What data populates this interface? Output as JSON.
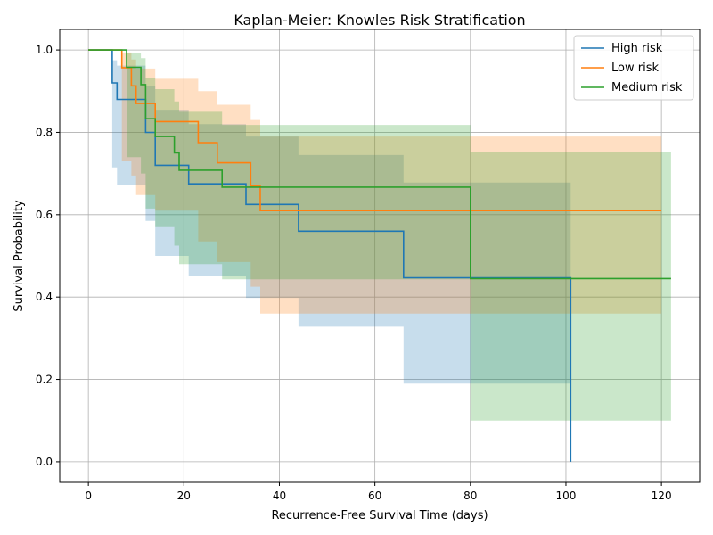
{
  "chart_data": {
    "type": "line",
    "title": "Kaplan-Meier: Knowles Risk Stratification",
    "xlabel": "Recurrence-Free Survival Time (days)",
    "ylabel": "Survival Probability",
    "xlim": [
      -6,
      128
    ],
    "ylim": [
      -0.05,
      1.05
    ],
    "xticks": [
      0,
      20,
      40,
      60,
      80,
      100,
      120
    ],
    "yticks": [
      0.0,
      0.2,
      0.4,
      0.6,
      0.8,
      1.0
    ],
    "xtick_labels": [
      "0",
      "20",
      "40",
      "60",
      "80",
      "100",
      "120"
    ],
    "ytick_labels": [
      "0.0",
      "0.2",
      "0.4",
      "0.6",
      "0.8",
      "1.0"
    ],
    "grid": true,
    "legend_position": "top-right",
    "series": [
      {
        "name": "High risk",
        "color": "#1f77b4",
        "x": [
          0,
          5,
          6,
          12,
          14,
          21,
          33,
          44,
          66,
          101,
          101
        ],
        "y": [
          1.0,
          0.92,
          0.88,
          0.8,
          0.72,
          0.675,
          0.625,
          0.56,
          0.447,
          0.447,
          0.0
        ],
        "ci_lower": [
          1.0,
          0.715,
          0.672,
          0.585,
          0.5,
          0.452,
          0.398,
          0.328,
          0.19,
          0.19,
          0.19
        ],
        "ci_upper": [
          1.0,
          0.975,
          0.962,
          0.913,
          0.855,
          0.82,
          0.79,
          0.745,
          0.678,
          0.678,
          0.678
        ]
      },
      {
        "name": "Low risk",
        "color": "#ff7f0e",
        "x": [
          0,
          7,
          9,
          10,
          14,
          23,
          27,
          34,
          36,
          120
        ],
        "y": [
          1.0,
          0.957,
          0.913,
          0.87,
          0.826,
          0.775,
          0.726,
          0.67,
          0.61,
          0.61
        ],
        "ci_lower": [
          1.0,
          0.73,
          0.695,
          0.648,
          0.61,
          0.535,
          0.485,
          0.425,
          0.36,
          0.36
        ],
        "ci_upper": [
          1.0,
          0.994,
          0.977,
          0.955,
          0.93,
          0.9,
          0.867,
          0.83,
          0.79,
          0.79
        ]
      },
      {
        "name": "Medium risk",
        "color": "#2ca02c",
        "x": [
          0,
          8,
          11,
          12,
          14,
          18,
          19,
          28,
          80,
          122
        ],
        "y": [
          1.0,
          0.958,
          0.916,
          0.833,
          0.79,
          0.75,
          0.708,
          0.667,
          0.445,
          0.445
        ],
        "ci_lower": [
          1.0,
          0.74,
          0.7,
          0.615,
          0.57,
          0.525,
          0.48,
          0.443,
          0.1,
          0.1
        ],
        "ci_upper": [
          1.0,
          0.993,
          0.98,
          0.933,
          0.905,
          0.875,
          0.85,
          0.818,
          0.752,
          0.752
        ]
      }
    ]
  }
}
